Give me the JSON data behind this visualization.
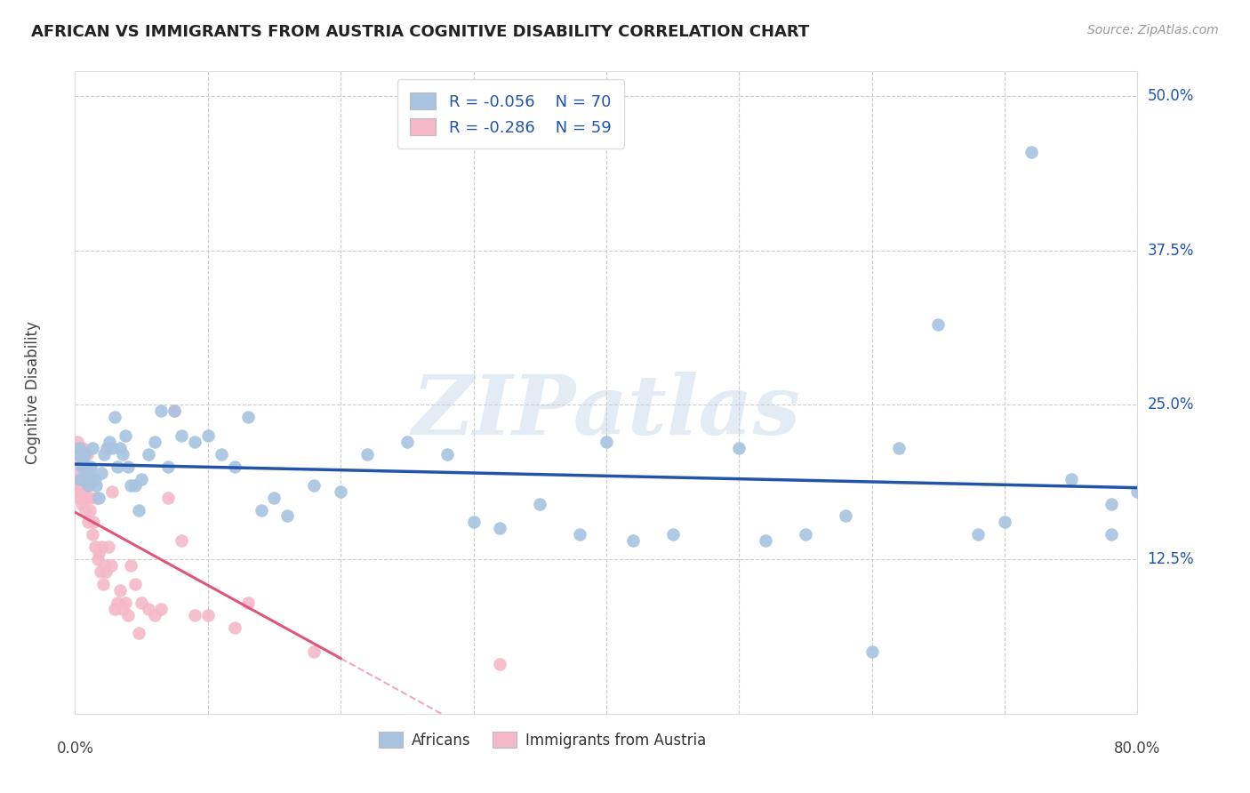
{
  "title": "AFRICAN VS IMMIGRANTS FROM AUSTRIA COGNITIVE DISABILITY CORRELATION CHART",
  "source": "Source: ZipAtlas.com",
  "ylabel": "Cognitive Disability",
  "xlim": [
    0.0,
    0.8
  ],
  "ylim": [
    0.0,
    0.52
  ],
  "yticks": [
    0.0,
    0.125,
    0.25,
    0.375,
    0.5
  ],
  "ytick_labels": [
    "",
    "12.5%",
    "25.0%",
    "37.5%",
    "50.0%"
  ],
  "xtick_labels": [
    "0.0%",
    "80.0%"
  ],
  "grid_color": "#cccccc",
  "background_color": "#ffffff",
  "africans_color": "#a8c4e0",
  "austria_color": "#f4b8c8",
  "africans_line_color": "#2255aa",
  "austria_line_color": "#e0557a",
  "legend_R_africans": "R = -0.056",
  "legend_N_africans": "N = 70",
  "legend_R_austria": "R = -0.286",
  "legend_N_austria": "N = 59",
  "watermark": "ZIPatlas",
  "africans_x": [
    0.002,
    0.003,
    0.004,
    0.005,
    0.006,
    0.007,
    0.008,
    0.009,
    0.01,
    0.011,
    0.012,
    0.013,
    0.015,
    0.016,
    0.018,
    0.02,
    0.022,
    0.024,
    0.026,
    0.028,
    0.03,
    0.032,
    0.034,
    0.036,
    0.038,
    0.04,
    0.042,
    0.045,
    0.048,
    0.05,
    0.055,
    0.06,
    0.065,
    0.07,
    0.075,
    0.08,
    0.09,
    0.1,
    0.11,
    0.12,
    0.13,
    0.14,
    0.15,
    0.16,
    0.18,
    0.2,
    0.22,
    0.25,
    0.28,
    0.3,
    0.32,
    0.35,
    0.38,
    0.4,
    0.42,
    0.45,
    0.5,
    0.52,
    0.55,
    0.58,
    0.6,
    0.62,
    0.65,
    0.68,
    0.7,
    0.72,
    0.75,
    0.78,
    0.8,
    0.78
  ],
  "africans_y": [
    0.21,
    0.215,
    0.19,
    0.2,
    0.205,
    0.21,
    0.2,
    0.195,
    0.185,
    0.19,
    0.2,
    0.215,
    0.19,
    0.185,
    0.175,
    0.195,
    0.21,
    0.215,
    0.22,
    0.215,
    0.24,
    0.2,
    0.215,
    0.21,
    0.225,
    0.2,
    0.185,
    0.185,
    0.165,
    0.19,
    0.21,
    0.22,
    0.245,
    0.2,
    0.245,
    0.225,
    0.22,
    0.225,
    0.21,
    0.2,
    0.24,
    0.165,
    0.175,
    0.16,
    0.185,
    0.18,
    0.21,
    0.22,
    0.21,
    0.155,
    0.15,
    0.17,
    0.145,
    0.22,
    0.14,
    0.145,
    0.215,
    0.14,
    0.145,
    0.16,
    0.05,
    0.215,
    0.315,
    0.145,
    0.155,
    0.455,
    0.19,
    0.17,
    0.18,
    0.145
  ],
  "austria_x": [
    0.001,
    0.001,
    0.002,
    0.002,
    0.003,
    0.003,
    0.004,
    0.004,
    0.005,
    0.005,
    0.006,
    0.006,
    0.007,
    0.007,
    0.008,
    0.008,
    0.009,
    0.009,
    0.01,
    0.01,
    0.011,
    0.011,
    0.012,
    0.013,
    0.014,
    0.015,
    0.016,
    0.017,
    0.018,
    0.019,
    0.02,
    0.021,
    0.022,
    0.023,
    0.025,
    0.027,
    0.028,
    0.03,
    0.032,
    0.034,
    0.036,
    0.038,
    0.04,
    0.042,
    0.045,
    0.048,
    0.05,
    0.055,
    0.06,
    0.065,
    0.07,
    0.075,
    0.08,
    0.09,
    0.1,
    0.12,
    0.13,
    0.18,
    0.32
  ],
  "austria_y": [
    0.2,
    0.185,
    0.22,
    0.19,
    0.215,
    0.175,
    0.205,
    0.18,
    0.2,
    0.17,
    0.185,
    0.215,
    0.195,
    0.175,
    0.19,
    0.165,
    0.21,
    0.175,
    0.185,
    0.155,
    0.195,
    0.165,
    0.175,
    0.145,
    0.155,
    0.135,
    0.175,
    0.125,
    0.13,
    0.115,
    0.135,
    0.105,
    0.12,
    0.115,
    0.135,
    0.12,
    0.18,
    0.085,
    0.09,
    0.1,
    0.085,
    0.09,
    0.08,
    0.12,
    0.105,
    0.065,
    0.09,
    0.085,
    0.08,
    0.085,
    0.175,
    0.245,
    0.14,
    0.08,
    0.08,
    0.07,
    0.09,
    0.05,
    0.04
  ],
  "austria_line_x_start": 0.0,
  "austria_line_x_end_solid": 0.2,
  "austria_line_x_end_dash": 0.8,
  "africans_line_x_start": 0.0,
  "africans_line_x_end": 0.8
}
